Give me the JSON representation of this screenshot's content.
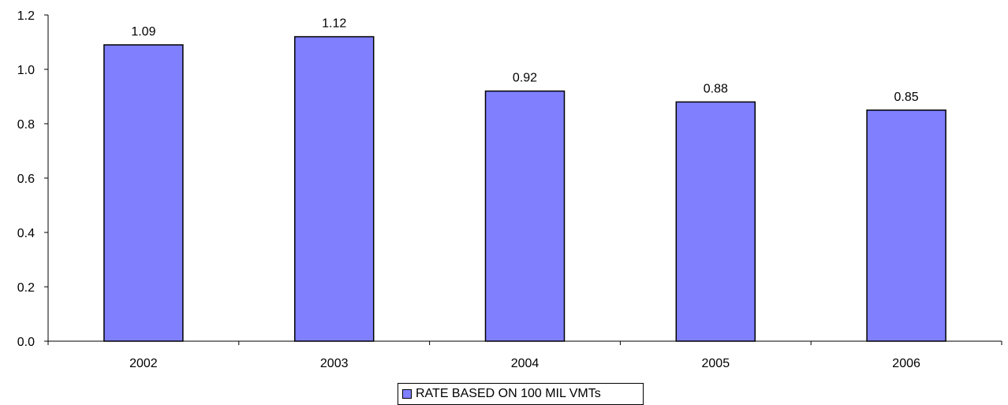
{
  "chart_data": {
    "type": "bar",
    "categories": [
      "2002",
      "2003",
      "2004",
      "2005",
      "2006"
    ],
    "series": [
      {
        "name": "RATE BASED ON 100 MIL VMTs",
        "values": [
          1.09,
          1.12,
          0.92,
          0.88,
          0.85
        ],
        "data_labels": [
          "1.09",
          "1.12",
          "0.92",
          "0.88",
          "0.85"
        ]
      }
    ],
    "title": "",
    "xlabel": "",
    "ylabel": "",
    "ylim": [
      0,
      1.2
    ],
    "yticks": [
      "0.0",
      "0.2",
      "0.4",
      "0.6",
      "0.8",
      "1.0",
      "1.2"
    ],
    "grid": false,
    "legend_position": "bottom",
    "colors": {
      "bar_fill": "#8080FF",
      "bar_stroke": "#000000",
      "axis": "#000000"
    }
  }
}
